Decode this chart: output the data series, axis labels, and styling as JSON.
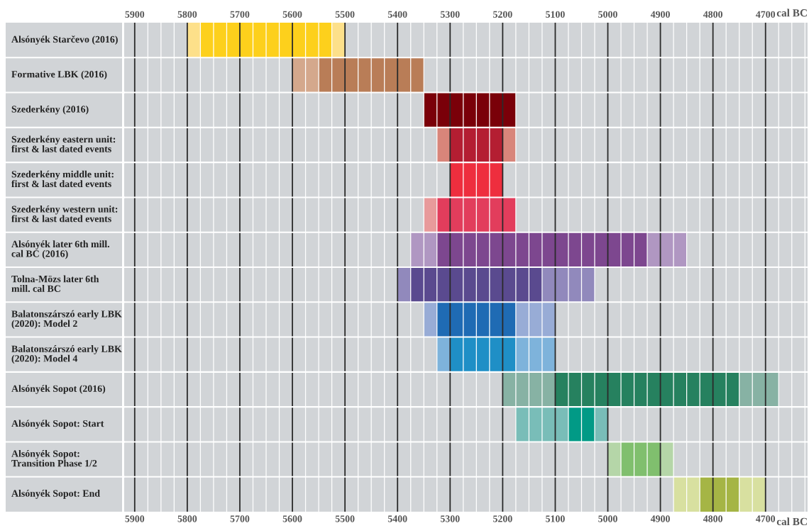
{
  "chart_data": {
    "type": "bar",
    "orientation": "horizontal",
    "xlabel": "cal BC",
    "x2label": "cal BC",
    "categories": [
      "Alsónyék Starčevo (2016)",
      "Formative LBK (2016)",
      "Szederkény (2016)",
      "Szederkény eastern unit:\nfirst & last dated events",
      "Szederkény middle unit:\nfirst & last dated events",
      "Szederkény western unit:\nfirst & last dated events",
      "Alsónyék later 6th mill.\ncal BC (2016)",
      "Tolna-Mözs later 6th\nmill. cal BC",
      "Balatonszárszó early LBK\n(2020): Model 2",
      "Balatonszárszó early LBK\n(2020): Model 4",
      "Alsónyék Sopot (2016)",
      "Alsónyék Sopot: Start",
      "Alsónyék Sopot:\nTransition Phase 1/2",
      "Alsónyék Sopot: End"
    ],
    "series": [
      {
        "base": [
          5500,
          null,
          null,
          5175,
          null,
          null,
          4850,
          5025,
          5100,
          5100,
          4675,
          5000,
          4875,
          4700
        ],
        "values": [
          25,
          null,
          null,
          25,
          null,
          null,
          75,
          100,
          75,
          75,
          75,
          25,
          25,
          50
        ],
        "colors": [
          "#fde08a",
          null,
          null,
          "#d8857a",
          null,
          null,
          "#b097c2",
          "#9189bc",
          "#98acd6",
          "#7eb3db",
          "#87b2a4",
          "#79bdb8",
          "#b5d6a8",
          "#d8e0a0"
        ]
      },
      {
        "base": [
          5525,
          5350,
          5175,
          5200,
          5200,
          5175,
          4925,
          5125,
          5175,
          5175,
          4750,
          5025,
          4900,
          4750
        ],
        "values": [
          250,
          200,
          175,
          100,
          100,
          150,
          400,
          250,
          150,
          125,
          350,
          50,
          75,
          75
        ],
        "colors": [
          "#fdd01c",
          "#b97d57",
          "#7a0009",
          "#b41e32",
          "#ee2e3e",
          "#e23d5c",
          "#7d478f",
          "#5a4a8f",
          "#1f6bb4",
          "#1f8fc6",
          "#26815f",
          "#019a86",
          "#80bf6e",
          "#a5b545"
        ]
      },
      {
        "base": [
          5775,
          5550,
          null,
          5300,
          null,
          5325,
          5325,
          5375,
          5325,
          5300,
          5100,
          5075,
          4975,
          4825
        ],
        "values": [
          25,
          50,
          null,
          25,
          null,
          25,
          50,
          25,
          25,
          25,
          100,
          100,
          25,
          50
        ],
        "colors": [
          "#fde08a",
          "#d4a88c",
          null,
          "#d8857a",
          null,
          "#e89a9b",
          "#b097c2",
          "#9189bc",
          "#98acd6",
          "#7eb3db",
          "#87b2a4",
          "#79bdb8",
          "#b5d6a8",
          "#d8e0a0"
        ]
      }
    ],
    "xlim": [
      5920,
      4620
    ],
    "x2lim": [
      5920,
      4620
    ],
    "xticks": [
      5900,
      {
        "value": 5875,
        "label": null
      },
      {
        "value": 5850,
        "label": null
      },
      {
        "value": 5825,
        "label": null
      },
      5800,
      {
        "value": 5775,
        "label": null
      },
      {
        "value": 5750,
        "label": null
      },
      {
        "value": 5725,
        "label": null
      },
      5700,
      {
        "value": 5675,
        "label": null
      },
      {
        "value": 5650,
        "label": null
      },
      {
        "value": 5625,
        "label": null
      },
      5600,
      {
        "value": 5575,
        "label": null
      },
      {
        "value": 5550,
        "label": null
      },
      {
        "value": 5525,
        "label": null
      },
      5500,
      {
        "value": 5475,
        "label": null
      },
      {
        "value": 5450,
        "label": null
      },
      {
        "value": 5425,
        "label": null
      },
      5400,
      {
        "value": 5375,
        "label": null
      },
      {
        "value": 5350,
        "label": null
      },
      {
        "value": 5325,
        "label": null
      },
      5300,
      {
        "value": 5275,
        "label": null
      },
      {
        "value": 5250,
        "label": null
      },
      {
        "value": 5225,
        "label": null
      },
      5200,
      {
        "value": 5175,
        "label": null
      },
      {
        "value": 5150,
        "label": null
      },
      {
        "value": 5125,
        "label": null
      },
      5100,
      {
        "value": 5075,
        "label": null
      },
      {
        "value": 5050,
        "label": null
      },
      {
        "value": 5025,
        "label": null
      },
      5000,
      {
        "value": 4975,
        "label": null
      },
      {
        "value": 4950,
        "label": null
      },
      {
        "value": 4925,
        "label": null
      },
      4900,
      {
        "value": 4875,
        "label": null
      },
      {
        "value": 4850,
        "label": null
      },
      {
        "value": 4825,
        "label": null
      },
      4800,
      {
        "value": 4775,
        "label": null
      },
      {
        "value": 4750,
        "label": null
      },
      {
        "value": 4725,
        "label": null
      },
      4700,
      {
        "value": 4675,
        "label": null
      },
      {
        "value": 4650,
        "label": null
      },
      {
        "value": 4625,
        "label": null
      }
    ],
    "x2ticks": [
      5900,
      5800,
      5700,
      5600,
      5500,
      5400,
      5300,
      5200,
      5100,
      5000,
      4900,
      4800,
      4700
    ],
    "grid": "x"
  }
}
